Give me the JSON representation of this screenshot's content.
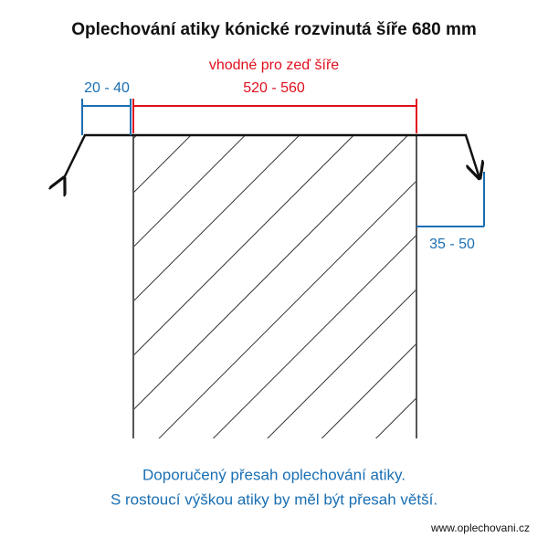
{
  "header": {
    "title": "Oplechování atiky kónické rozvinutá šíře 680 mm"
  },
  "dimensions": {
    "wall_label": "vhodné pro zeď šíře",
    "wall_width": "520 - 560",
    "overhang_left": "20 - 40",
    "overhang_right": "35 - 50"
  },
  "caption": {
    "lines": [
      "Doporučený přesah oplechování atiky.",
      "S rostoucí výškou atiky by měl být přesah větší."
    ]
  },
  "footer": {
    "website": "www.oplechovani.cz"
  }
}
